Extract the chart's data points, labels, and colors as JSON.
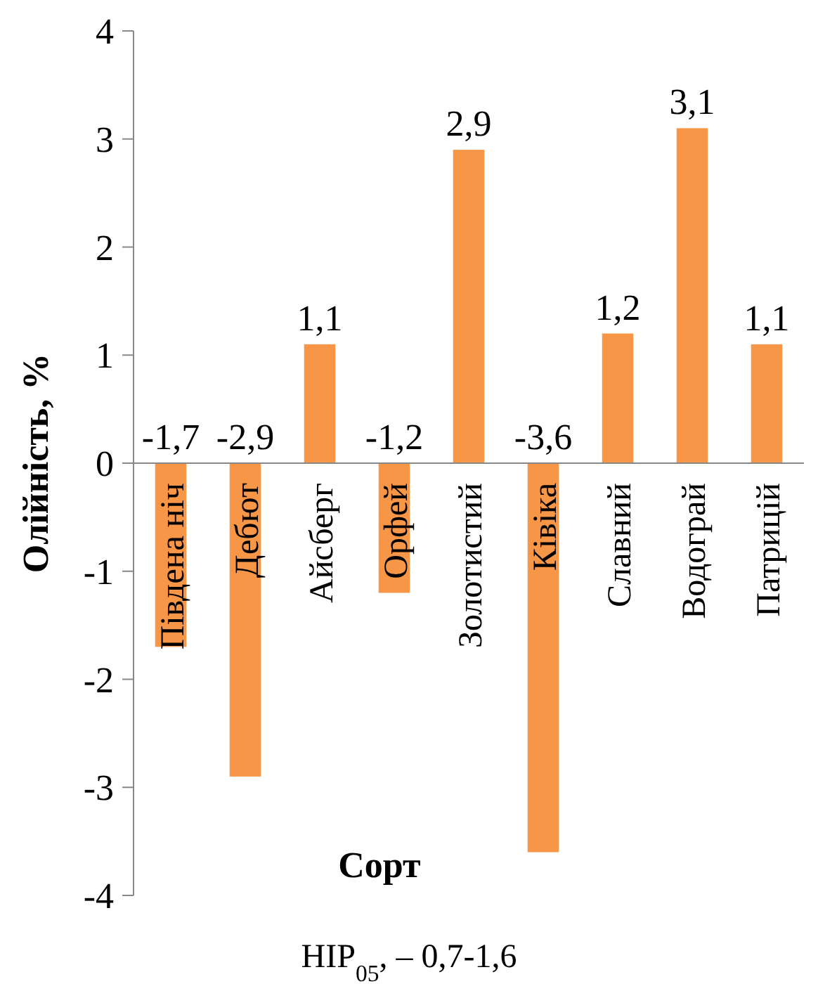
{
  "chart_data": {
    "type": "bar",
    "xlabel": "Сорт",
    "ylabel": "Олійність, %",
    "categories": [
      "Південа ніч",
      "Дебют",
      "Айсберг",
      "Орфей",
      "Золотистий",
      "Ківіка",
      "Славний",
      "Водограй",
      "Патрицій"
    ],
    "values": [
      -1.7,
      -2.9,
      1.1,
      -1.2,
      2.9,
      -3.6,
      1.2,
      3.1,
      1.1
    ],
    "value_labels": [
      "-1,7",
      "-2,9",
      "1,1",
      "-1,2",
      "2,9",
      "-3,6",
      "1,2",
      "3,1",
      "1,1"
    ],
    "color": "#f79646",
    "ylim": [
      -4,
      4
    ],
    "yticks": [
      -4,
      -3,
      -2,
      -1,
      0,
      1,
      2,
      3,
      4
    ],
    "annotations": [
      "НІР$_{05}$, – 0,7-1,6"
    ]
  }
}
